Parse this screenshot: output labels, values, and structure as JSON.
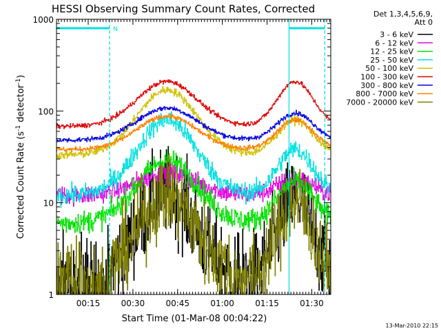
{
  "chart_data": {
    "type": "line",
    "title": "HESSI Observing Summary Count Rates, Corrected",
    "ylabel_parts": [
      "Corrected Count Rate (s",
      "-1",
      " detector",
      "-1",
      ")"
    ],
    "xlabel": "Start Time (01-Mar-08 00:04:22)",
    "timestamp": "13-Mar-2010 22:15",
    "x_unit": "minutes after 00:04:22 start time",
    "xlim": [
      0,
      92
    ],
    "ylim": [
      1,
      1000
    ],
    "y_scale": "log",
    "x_ticks": [
      {
        "x": 10.63,
        "label": "00:15"
      },
      {
        "x": 25.63,
        "label": "00:30"
      },
      {
        "x": 40.63,
        "label": "00:45"
      },
      {
        "x": 55.63,
        "label": "01:00"
      },
      {
        "x": 70.63,
        "label": "01:15"
      },
      {
        "x": 85.63,
        "label": "01:30"
      }
    ],
    "y_ticks": [
      {
        "y": 1,
        "label": "1"
      },
      {
        "y": 10,
        "label": "10"
      },
      {
        "y": 100,
        "label": "100"
      },
      {
        "y": 1000,
        "label": "1000"
      }
    ],
    "legend": {
      "position": "right",
      "header": [
        "Det 1,3,4,5,6,9,",
        "Att 0"
      ]
    },
    "series": [
      {
        "name": "3 - 6 keV",
        "color": "#000000",
        "base": 1.4,
        "peak1": 13,
        "peak2": 11,
        "noise": 0.55,
        "night_low": true
      },
      {
        "name": "6 - 12 keV",
        "color": "#e000e0",
        "base": 12,
        "peak1": 21,
        "peak2": 18,
        "noise": 0.12
      },
      {
        "name": "12 - 25 keV",
        "color": "#00e000",
        "base": 6,
        "peak1": 29,
        "peak2": 17,
        "noise": 0.14
      },
      {
        "name": "25 - 50 keV",
        "color": "#00e0e0",
        "base": 12,
        "peak1": 80,
        "peak2": 38,
        "noise": 0.12
      },
      {
        "name": "50 - 100 keV",
        "color": "#d0c000",
        "base": 33,
        "peak1": 170,
        "peak2": 80,
        "noise": 0.05
      },
      {
        "name": "100 - 300 keV",
        "color": "#e00000",
        "base": 68,
        "peak1": 210,
        "peak2": 210,
        "noise": 0.03
      },
      {
        "name": "300 - 800 keV",
        "color": "#0000e0",
        "base": 48,
        "peak1": 108,
        "peak2": 95,
        "noise": 0.03
      },
      {
        "name": "800 - 7000 keV",
        "color": "#ff8000",
        "base": 38,
        "peak1": 88,
        "peak2": 80,
        "noise": 0.03
      },
      {
        "name": "7000 - 20000 keV",
        "color": "#808000",
        "base": 1.4,
        "peak1": 12,
        "peak2": 10,
        "noise": 0.5,
        "night_low": true
      }
    ],
    "peaks": {
      "t1": 37,
      "w1": 10,
      "t2": 80,
      "w2": 6
    },
    "markers": {
      "color": "#00e0e0",
      "dashed_x": [
        17.8,
        90
      ],
      "solid_x": [
        78
      ],
      "top_bars": [
        [
          0,
          17.8
        ],
        [
          78,
          90
        ]
      ],
      "night_label": {
        "x": 19,
        "text": "N"
      }
    },
    "night_intervals": [
      [
        0,
        18
      ],
      [
        59,
        62
      ]
    ]
  }
}
